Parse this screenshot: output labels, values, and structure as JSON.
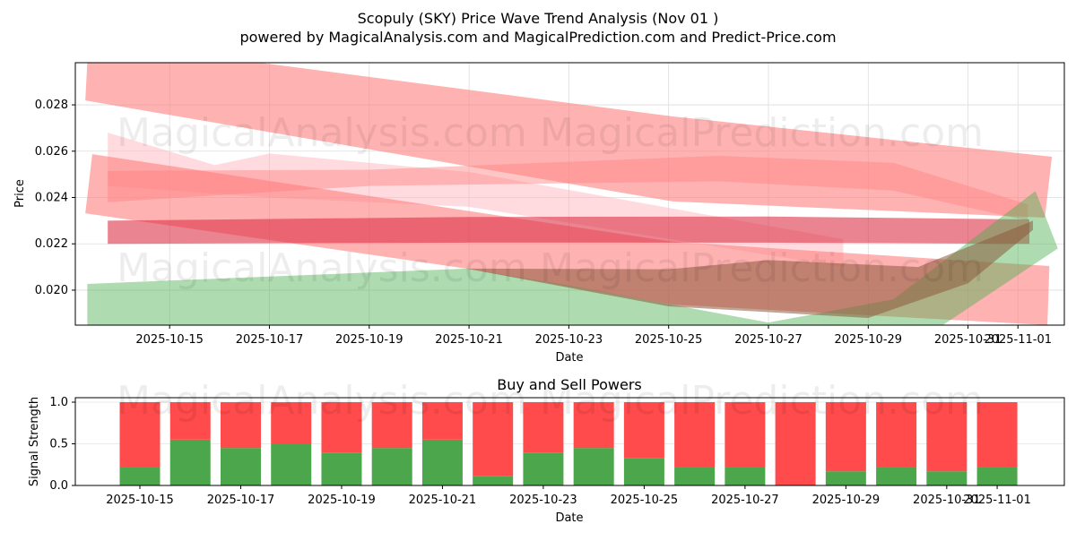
{
  "title": "Scopuly (SKY) Price Wave Trend Analysis (Nov 01 )",
  "subtitle": "powered by MagicalAnalysis.com and MagicalPrediction.com and Predict-Price.com",
  "watermarks": [
    "MagicalAnalysis.com",
    "MagicalPrediction.com"
  ],
  "chart_data": [
    {
      "type": "area",
      "title": "",
      "xlabel": "Date",
      "ylabel": "Price",
      "x_ticks": [
        {
          "label": "2025-10-15",
          "day": 0
        },
        {
          "label": "2025-10-17",
          "day": 2
        },
        {
          "label": "2025-10-19",
          "day": 4
        },
        {
          "label": "2025-10-21",
          "day": 6
        },
        {
          "label": "2025-10-23",
          "day": 8
        },
        {
          "label": "2025-10-25",
          "day": 10
        },
        {
          "label": "2025-10-27",
          "day": 12
        },
        {
          "label": "2025-10-29",
          "day": 14
        },
        {
          "label": "2025-10-31",
          "day": 16
        },
        {
          "label": "2025-11-01",
          "day": 17
        }
      ],
      "x_unit": "days since 2025-10-15",
      "xlim": [
        -1.89,
        17.93
      ],
      "ylim": [
        0.01849,
        0.02982
      ],
      "y_ticks": [
        "0.020",
        "0.022",
        "0.024",
        "0.026",
        "0.028"
      ],
      "grid": true,
      "bands": [
        {
          "name": "upper-trend-band",
          "color": "#ff7f7f",
          "opacity": 0.6,
          "upper": [
            [
              -1.65,
              0.02982
            ],
            [
              1.81,
              0.02982
            ],
            [
              10.08,
              0.0275
            ],
            [
              17.68,
              0.02576
            ]
          ],
          "lower": [
            [
              -1.69,
              0.02819
            ],
            [
              10.08,
              0.02383
            ],
            [
              17.54,
              0.02313
            ]
          ]
        },
        {
          "name": "faint-pink-band",
          "color": "#ffb0b8",
          "opacity": 0.45,
          "upper": [
            [
              -1.24,
              0.0268
            ],
            [
              0.9,
              0.0254
            ],
            [
              2,
              0.0259
            ],
            [
              6,
              0.0251
            ],
            [
              13.5,
              0.0222
            ]
          ],
          "lower": [
            [
              -1.24,
              0.0245
            ],
            [
              2,
              0.024
            ],
            [
              6,
              0.0236
            ],
            [
              13.5,
              0.021
            ]
          ]
        },
        {
          "name": "wavy-pink-band",
          "color": "#ff8080",
          "opacity": 0.45,
          "upper": [
            [
              -1.24,
              0.02515
            ],
            [
              4,
              0.0252
            ],
            [
              11,
              0.0258
            ],
            [
              14.5,
              0.0255
            ],
            [
              17.2,
              0.0237
            ]
          ],
          "lower": [
            [
              -1.24,
              0.0238
            ],
            [
              4,
              0.0245
            ],
            [
              11,
              0.0247
            ],
            [
              14.5,
              0.0243
            ],
            [
              17.2,
              0.023
            ]
          ]
        },
        {
          "name": "mid-trend-band",
          "color": "#ff7f7f",
          "opacity": 0.6,
          "upper": [
            [
              -1.55,
              0.02587
            ],
            [
              10.08,
              0.02209
            ],
            [
              17.63,
              0.02104
            ]
          ],
          "lower": [
            [
              -1.69,
              0.02332
            ],
            [
              5.95,
              0.02093
            ],
            [
              10.08,
              0.01938
            ],
            [
              17.59,
              0.01849
            ]
          ]
        },
        {
          "name": "flat-price-band",
          "color": "#dc3246",
          "opacity": 0.6,
          "upper": [
            [
              -1.24,
              0.023
            ],
            [
              6,
              0.02316
            ],
            [
              12,
              0.02318
            ],
            [
              17.23,
              0.02305
            ]
          ],
          "lower": [
            [
              -1.24,
              0.022
            ],
            [
              6,
              0.02205
            ],
            [
              12,
              0.02205
            ],
            [
              17.23,
              0.022
            ]
          ]
        },
        {
          "name": "green-band",
          "color": "#4caf50",
          "opacity": 0.45,
          "upper": [
            [
              -1.65,
              0.02027
            ],
            [
              5.95,
              0.02093
            ],
            [
              8,
              0.0202
            ],
            [
              12,
              0.0186
            ],
            [
              14.5,
              0.0196
            ],
            [
              17.35,
              0.02428
            ],
            [
              17.8,
              0.0218
            ]
          ],
          "lower": [
            [
              -1.65,
              0.0175
            ],
            [
              13,
              0.0175
            ],
            [
              15.5,
              0.0185
            ],
            [
              17.8,
              0.0218
            ]
          ]
        },
        {
          "name": "brown-overlap-band",
          "color": "#8c5a3c",
          "opacity": 0.55,
          "upper": [
            [
              5.95,
              0.02093
            ],
            [
              10,
              0.0209
            ],
            [
              12,
              0.0213
            ],
            [
              15,
              0.021
            ],
            [
              17.3,
              0.023
            ]
          ],
          "lower": [
            [
              5.95,
              0.02093
            ],
            [
              10,
              0.0193
            ],
            [
              14,
              0.0188
            ],
            [
              16,
              0.0203
            ],
            [
              17.3,
              0.0226
            ]
          ]
        }
      ]
    },
    {
      "type": "bar",
      "title": "Buy and Sell Powers",
      "xlabel": "Date",
      "ylabel": "Signal Strength",
      "ylim": [
        0,
        1.05
      ],
      "y_ticks": [
        "0.0",
        "0.5",
        "1.0"
      ],
      "categories": [
        "2025-10-15",
        "2025-10-16",
        "2025-10-17",
        "2025-10-18",
        "2025-10-19",
        "2025-10-20",
        "2025-10-21",
        "2025-10-22",
        "2025-10-23",
        "2025-10-24",
        "2025-10-25",
        "2025-10-26",
        "2025-10-27",
        "2025-10-28",
        "2025-10-29",
        "2025-10-30",
        "2025-10-31",
        "2025-11-01"
      ],
      "x_tick_labels": [
        {
          "label": "2025-10-15",
          "index": 0
        },
        {
          "label": "2025-10-17",
          "index": 2
        },
        {
          "label": "2025-10-19",
          "index": 4
        },
        {
          "label": "2025-10-21",
          "index": 6
        },
        {
          "label": "2025-10-23",
          "index": 8
        },
        {
          "label": "2025-10-25",
          "index": 10
        },
        {
          "label": "2025-10-27",
          "index": 12
        },
        {
          "label": "2025-10-29",
          "index": 14
        },
        {
          "label": "2025-10-31",
          "index": 16
        },
        {
          "label": "2025-11-01",
          "index": 17
        }
      ],
      "series": [
        {
          "name": "Buy",
          "color": "#4ca64c",
          "values": [
            0.22,
            0.55,
            0.45,
            0.5,
            0.39,
            0.45,
            0.55,
            0.11,
            0.39,
            0.45,
            0.33,
            0.22,
            0.22,
            0.0,
            0.17,
            0.22,
            0.17,
            0.22
          ]
        },
        {
          "name": "Sell",
          "color": "#ff4b4b",
          "values": [
            0.78,
            0.45,
            0.55,
            0.5,
            0.61,
            0.55,
            0.45,
            0.89,
            0.61,
            0.55,
            0.67,
            0.78,
            0.78,
            1.0,
            0.83,
            0.78,
            0.83,
            0.78
          ]
        }
      ]
    }
  ]
}
